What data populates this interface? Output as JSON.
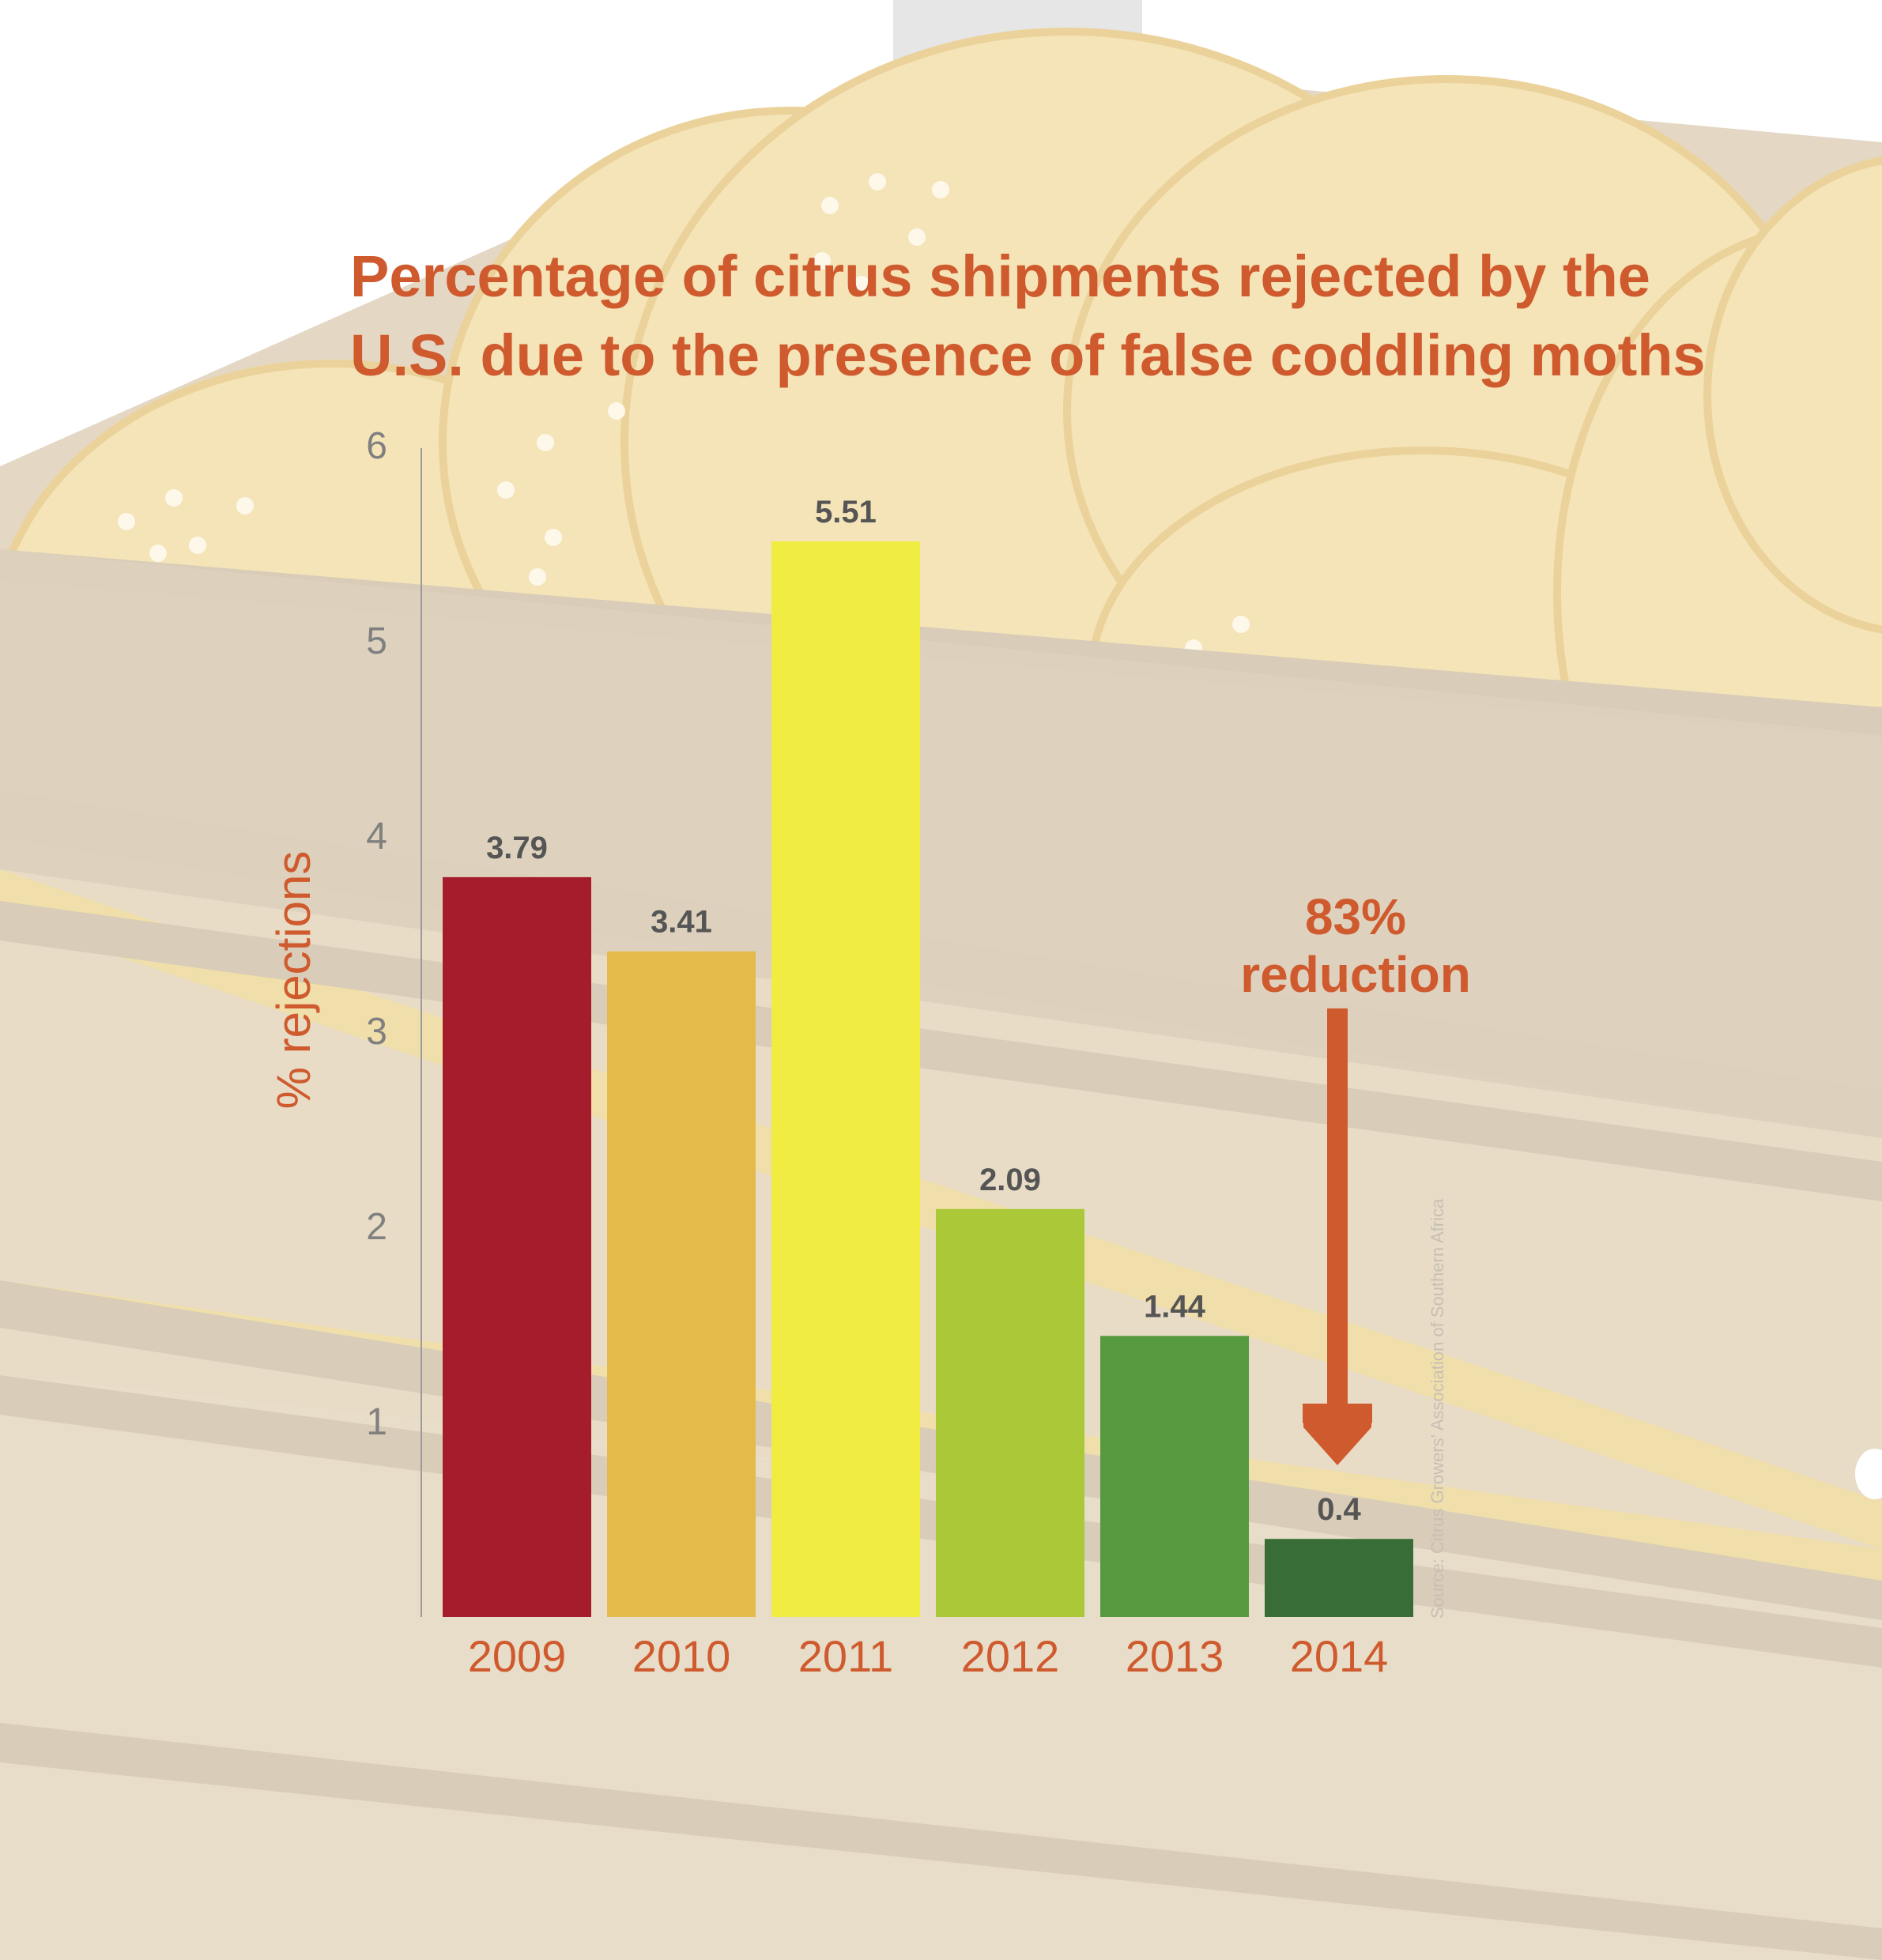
{
  "chart_data": {
    "type": "bar",
    "title": "Percentage of citrus shipments rejected by the U.S. due to the presence of false coddling moths",
    "title_lines": [
      "Percentage of citrus shipments rejected by the",
      "U.S. due to the presence of false coddling moths"
    ],
    "xlabel": "",
    "ylabel": "% rejections",
    "categories": [
      "2009",
      "2010",
      "2011",
      "2012",
      "2013",
      "2014"
    ],
    "values": [
      3.79,
      3.41,
      5.51,
      2.09,
      1.44,
      0.4
    ],
    "data_labels": [
      "3.79",
      "3.41",
      "5.51",
      "2.09",
      "1.44",
      "0.4"
    ],
    "bar_colors": [
      "#a51c2c",
      "#e4bb4a",
      "#f0ec41",
      "#aac838",
      "#57993f",
      "#386d38"
    ],
    "ylim": [
      0,
      6
    ],
    "yticks": [
      "1",
      "2",
      "3",
      "4",
      "5",
      "6"
    ],
    "grid": false,
    "legend": "none",
    "annotation": {
      "line1": "83%",
      "line2": "reduction"
    },
    "source": "Source: Citrus Growers' Association of Southern Africa"
  },
  "colors": {
    "title": "#cf5a2e",
    "tick_label": "#808080",
    "data_label": "#555555",
    "arrow": "#cf5a2e",
    "crate": "#e5dac7",
    "fruit": "#f4e4b7"
  }
}
